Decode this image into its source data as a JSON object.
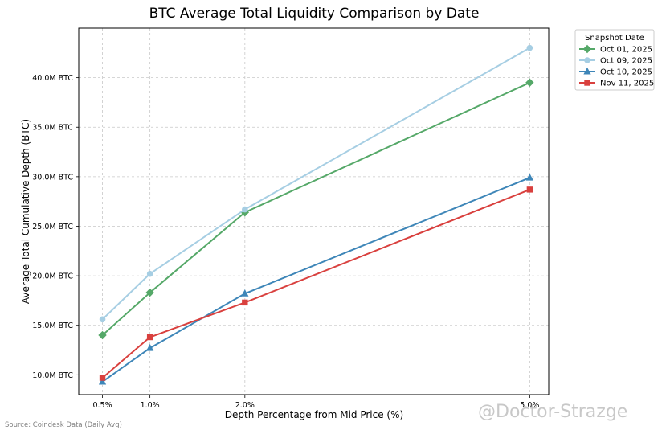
{
  "chart_data": {
    "type": "line",
    "title": "BTC Average Total Liquidity Comparison by Date",
    "xlabel": "Depth Percentage from Mid Price (%)",
    "ylabel": "Average Total Cumulative Depth (BTC)",
    "x": [
      0.5,
      1.0,
      2.0,
      5.0
    ],
    "x_tick_labels": [
      "0.5%",
      "1.0%",
      "2.0%",
      "5.0%"
    ],
    "xlim": [
      0.25,
      5.2
    ],
    "ylim": [
      8.0,
      45.0
    ],
    "y_ticks": [
      10,
      15,
      20,
      25,
      30,
      35,
      40
    ],
    "y_tick_labels": [
      "10.0M BTC",
      "15.0M BTC",
      "20.0M BTC",
      "25.0M BTC",
      "30.0M BTC",
      "35.0M BTC",
      "40.0M BTC"
    ],
    "grid": true,
    "legend_title": "Snapshot Date",
    "legend_placement": "outside right, top",
    "series": [
      {
        "name": "Oct 01, 2025",
        "color": "#55a868",
        "marker": "diamond",
        "values": [
          14.0,
          18.3,
          26.4,
          39.5
        ]
      },
      {
        "name": "Oct 09, 2025",
        "color": "#a6cee3",
        "marker": "circle",
        "values": [
          15.6,
          20.2,
          26.7,
          43.0
        ]
      },
      {
        "name": "Oct 10, 2025",
        "color": "#3e86b8",
        "marker": "triangle",
        "values": [
          9.3,
          12.7,
          18.2,
          29.9
        ]
      },
      {
        "name": "Nov 11, 2025",
        "color": "#d9403e",
        "marker": "square",
        "values": [
          9.7,
          13.8,
          17.3,
          28.7
        ]
      }
    ]
  },
  "footer": {
    "source": "Source: Coindesk Data (Daily Avg)",
    "watermark": "@Doctor-Strazge"
  }
}
